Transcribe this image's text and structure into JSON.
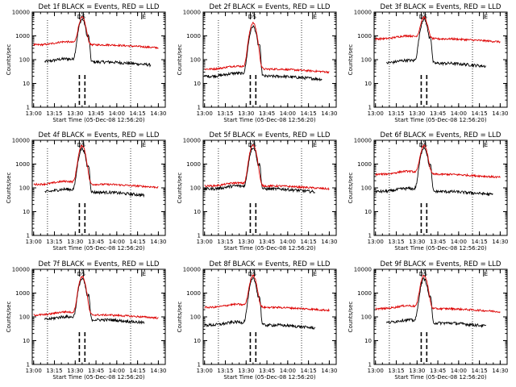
{
  "figure": {
    "rows": 3,
    "cols": 3
  },
  "colors": {
    "events": "#000000",
    "lld": "#dd0000",
    "background": "#ffffff",
    "axis": "#000000"
  },
  "chart_data": [
    {
      "type": "line",
      "title": "Det 1f BLACK = Events, RED = LLD",
      "xlabel": "Start Time (05-Dec-08 12:56:20)",
      "ylabel": "Counts/sec",
      "ylim": [
        1,
        10000
      ],
      "yscale": "log",
      "xticklabels": [
        "13:00",
        "13:15",
        "13:30",
        "13:45",
        "14:00",
        "14:15",
        "14:30"
      ],
      "yticklabels": [
        "1",
        "10",
        "100",
        "1000",
        "10000"
      ],
      "markers": [
        "D",
        "S",
        "E"
      ],
      "series": [
        {
          "name": "Events",
          "color": "#000000",
          "values": {
            "start": "13:08",
            "end": "14:25",
            "baseline": 80,
            "peak_time": "13:35",
            "peak": 5000
          }
        },
        {
          "name": "LLD",
          "color": "#dd0000",
          "values": {
            "start": "13:00",
            "end": "14:30",
            "baseline": 420,
            "peak_time": "13:35",
            "peak": 6000
          }
        }
      ]
    },
    {
      "type": "line",
      "title": "Det 2f BLACK = Events, RED = LLD",
      "xlabel": "Start Time (05-Dec-08 12:56:20)",
      "ylabel": "Counts/sec",
      "ylim": [
        1,
        10000
      ],
      "yscale": "log",
      "xticklabels": [
        "13:00",
        "13:15",
        "13:30",
        "13:45",
        "14:00",
        "14:15",
        "14:30"
      ],
      "yticklabels": [
        "1",
        "10",
        "100",
        "1000",
        "10000"
      ],
      "markers": [
        "D",
        "S",
        "E"
      ],
      "series": [
        {
          "name": "Events",
          "color": "#000000",
          "values": {
            "start": "13:00",
            "end": "14:25",
            "baseline": 20,
            "peak_time": "13:35",
            "peak": 2500
          }
        },
        {
          "name": "LLD",
          "color": "#dd0000",
          "values": {
            "start": "13:00",
            "end": "14:30",
            "baseline": 40,
            "peak_time": "13:35",
            "peak": 3500
          }
        }
      ]
    },
    {
      "type": "line",
      "title": "Det 3f BLACK = Events, RED = LLD",
      "xlabel": "Start Time (05-Dec-08 12:56:20)",
      "ylabel": "Counts/sec",
      "ylim": [
        1,
        10000
      ],
      "yscale": "log",
      "xticklabels": [
        "13:00",
        "13:15",
        "13:30",
        "13:45",
        "14:00",
        "14:15",
        "14:30"
      ],
      "yticklabels": [
        "1",
        "10",
        "100",
        "1000",
        "10000"
      ],
      "markers": [
        "D",
        "S",
        "E"
      ],
      "series": [
        {
          "name": "Events",
          "color": "#000000",
          "values": {
            "start": "13:08",
            "end": "14:20",
            "baseline": 70,
            "peak_time": "13:35",
            "peak": 5000
          }
        },
        {
          "name": "LLD",
          "color": "#dd0000",
          "values": {
            "start": "13:00",
            "end": "14:30",
            "baseline": 750,
            "peak_time": "13:35",
            "peak": 6000
          }
        }
      ]
    },
    {
      "type": "line",
      "title": "Det 4f BLACK = Events, RED = LLD",
      "xlabel": "Start Time (05-Dec-08 12:56:20)",
      "ylabel": "Counts/sec",
      "ylim": [
        1,
        10000
      ],
      "yscale": "log",
      "xticklabels": [
        "13:00",
        "13:15",
        "13:30",
        "13:45",
        "14:00",
        "14:15",
        "14:30"
      ],
      "yticklabels": [
        "1",
        "10",
        "100",
        "1000",
        "10000"
      ],
      "markers": [
        "D",
        "S",
        "E"
      ],
      "series": [
        {
          "name": "Events",
          "color": "#000000",
          "values": {
            "start": "13:08",
            "end": "14:20",
            "baseline": 65,
            "peak_time": "13:35",
            "peak": 4500
          }
        },
        {
          "name": "LLD",
          "color": "#dd0000",
          "values": {
            "start": "13:00",
            "end": "14:30",
            "baseline": 140,
            "peak_time": "13:35",
            "peak": 6000
          }
        }
      ]
    },
    {
      "type": "line",
      "title": "Det 5f BLACK = Events, RED = LLD",
      "xlabel": "Start Time (05-Dec-08 12:56:20)",
      "ylabel": "Counts/sec",
      "ylim": [
        1,
        10000
      ],
      "yscale": "log",
      "xticklabels": [
        "13:00",
        "13:15",
        "13:30",
        "13:45",
        "14:00",
        "14:15",
        "14:30"
      ],
      "yticklabels": [
        "1",
        "10",
        "100",
        "1000",
        "10000"
      ],
      "markers": [
        "D",
        "S",
        "E"
      ],
      "series": [
        {
          "name": "Events",
          "color": "#000000",
          "values": {
            "start": "13:00",
            "end": "14:20",
            "baseline": 90,
            "peak_time": "13:35",
            "peak": 5000
          }
        },
        {
          "name": "LLD",
          "color": "#dd0000",
          "values": {
            "start": "13:00",
            "end": "14:30",
            "baseline": 120,
            "peak_time": "13:35",
            "peak": 6500
          }
        }
      ]
    },
    {
      "type": "line",
      "title": "Det 6f BLACK = Events, RED = LLD",
      "xlabel": "Start Time (05-Dec-08 12:56:20)",
      "ylabel": "Counts/sec",
      "ylim": [
        1,
        10000
      ],
      "yscale": "log",
      "xticklabels": [
        "13:00",
        "13:15",
        "13:30",
        "13:45",
        "14:00",
        "14:15",
        "14:30"
      ],
      "yticklabels": [
        "1",
        "10",
        "100",
        "1000",
        "10000"
      ],
      "markers": [
        "D",
        "S",
        "E"
      ],
      "series": [
        {
          "name": "Events",
          "color": "#000000",
          "values": {
            "start": "13:00",
            "end": "14:25",
            "baseline": 70,
            "peak_time": "13:35",
            "peak": 5000
          }
        },
        {
          "name": "LLD",
          "color": "#dd0000",
          "values": {
            "start": "13:00",
            "end": "14:30",
            "baseline": 370,
            "peak_time": "13:35",
            "peak": 6000
          }
        }
      ]
    },
    {
      "type": "line",
      "title": "Det 7f BLACK = Events, RED = LLD",
      "xlabel": "Start Time (05-Dec-08 12:56:20)",
      "ylabel": "Counts/sec",
      "ylim": [
        1,
        10000
      ],
      "yscale": "log",
      "xticklabels": [
        "13:00",
        "13:15",
        "13:30",
        "13:45",
        "14:00",
        "14:15",
        "14:30"
      ],
      "yticklabels": [
        "1",
        "10",
        "100",
        "1000",
        "10000"
      ],
      "markers": [
        "D",
        "S",
        "E"
      ],
      "series": [
        {
          "name": "Events",
          "color": "#000000",
          "values": {
            "start": "13:08",
            "end": "14:20",
            "baseline": 75,
            "peak_time": "13:35",
            "peak": 4000
          }
        },
        {
          "name": "LLD",
          "color": "#dd0000",
          "values": {
            "start": "13:00",
            "end": "14:30",
            "baseline": 120,
            "peak_time": "13:35",
            "peak": 5000
          }
        }
      ]
    },
    {
      "type": "line",
      "title": "Det 8f BLACK = Events, RED = LLD",
      "xlabel": "Start Time (05-Dec-08 12:56:20)",
      "ylabel": "Counts/sec",
      "ylim": [
        1,
        10000
      ],
      "yscale": "log",
      "xticklabels": [
        "13:00",
        "13:15",
        "13:30",
        "13:45",
        "14:00",
        "14:15",
        "14:30"
      ],
      "yticklabels": [
        "1",
        "10",
        "100",
        "1000",
        "10000"
      ],
      "markers": [
        "D",
        "S",
        "E"
      ],
      "series": [
        {
          "name": "Events",
          "color": "#000000",
          "values": {
            "start": "13:00",
            "end": "14:20",
            "baseline": 45,
            "peak_time": "13:35",
            "peak": 4000
          }
        },
        {
          "name": "LLD",
          "color": "#dd0000",
          "values": {
            "start": "13:00",
            "end": "14:30",
            "baseline": 250,
            "peak_time": "13:35",
            "peak": 5500
          }
        }
      ]
    },
    {
      "type": "line",
      "title": "Det 9f BLACK = Events, RED = LLD",
      "xlabel": "Start Time (05-Dec-08 12:56:20)",
      "ylabel": "Counts/sec",
      "ylim": [
        1,
        10000
      ],
      "yscale": "log",
      "xticklabels": [
        "13:00",
        "13:15",
        "13:30",
        "13:45",
        "14:00",
        "14:15",
        "14:30"
      ],
      "yticklabels": [
        "1",
        "10",
        "100",
        "1000",
        "10000"
      ],
      "markers": [
        "D",
        "S",
        "E"
      ],
      "series": [
        {
          "name": "Events",
          "color": "#000000",
          "values": {
            "start": "13:08",
            "end": "14:20",
            "baseline": 55,
            "peak_time": "13:35",
            "peak": 4000
          }
        },
        {
          "name": "LLD",
          "color": "#dd0000",
          "values": {
            "start": "13:00",
            "end": "14:30",
            "baseline": 220,
            "peak_time": "13:35",
            "peak": 5500
          }
        }
      ]
    }
  ]
}
